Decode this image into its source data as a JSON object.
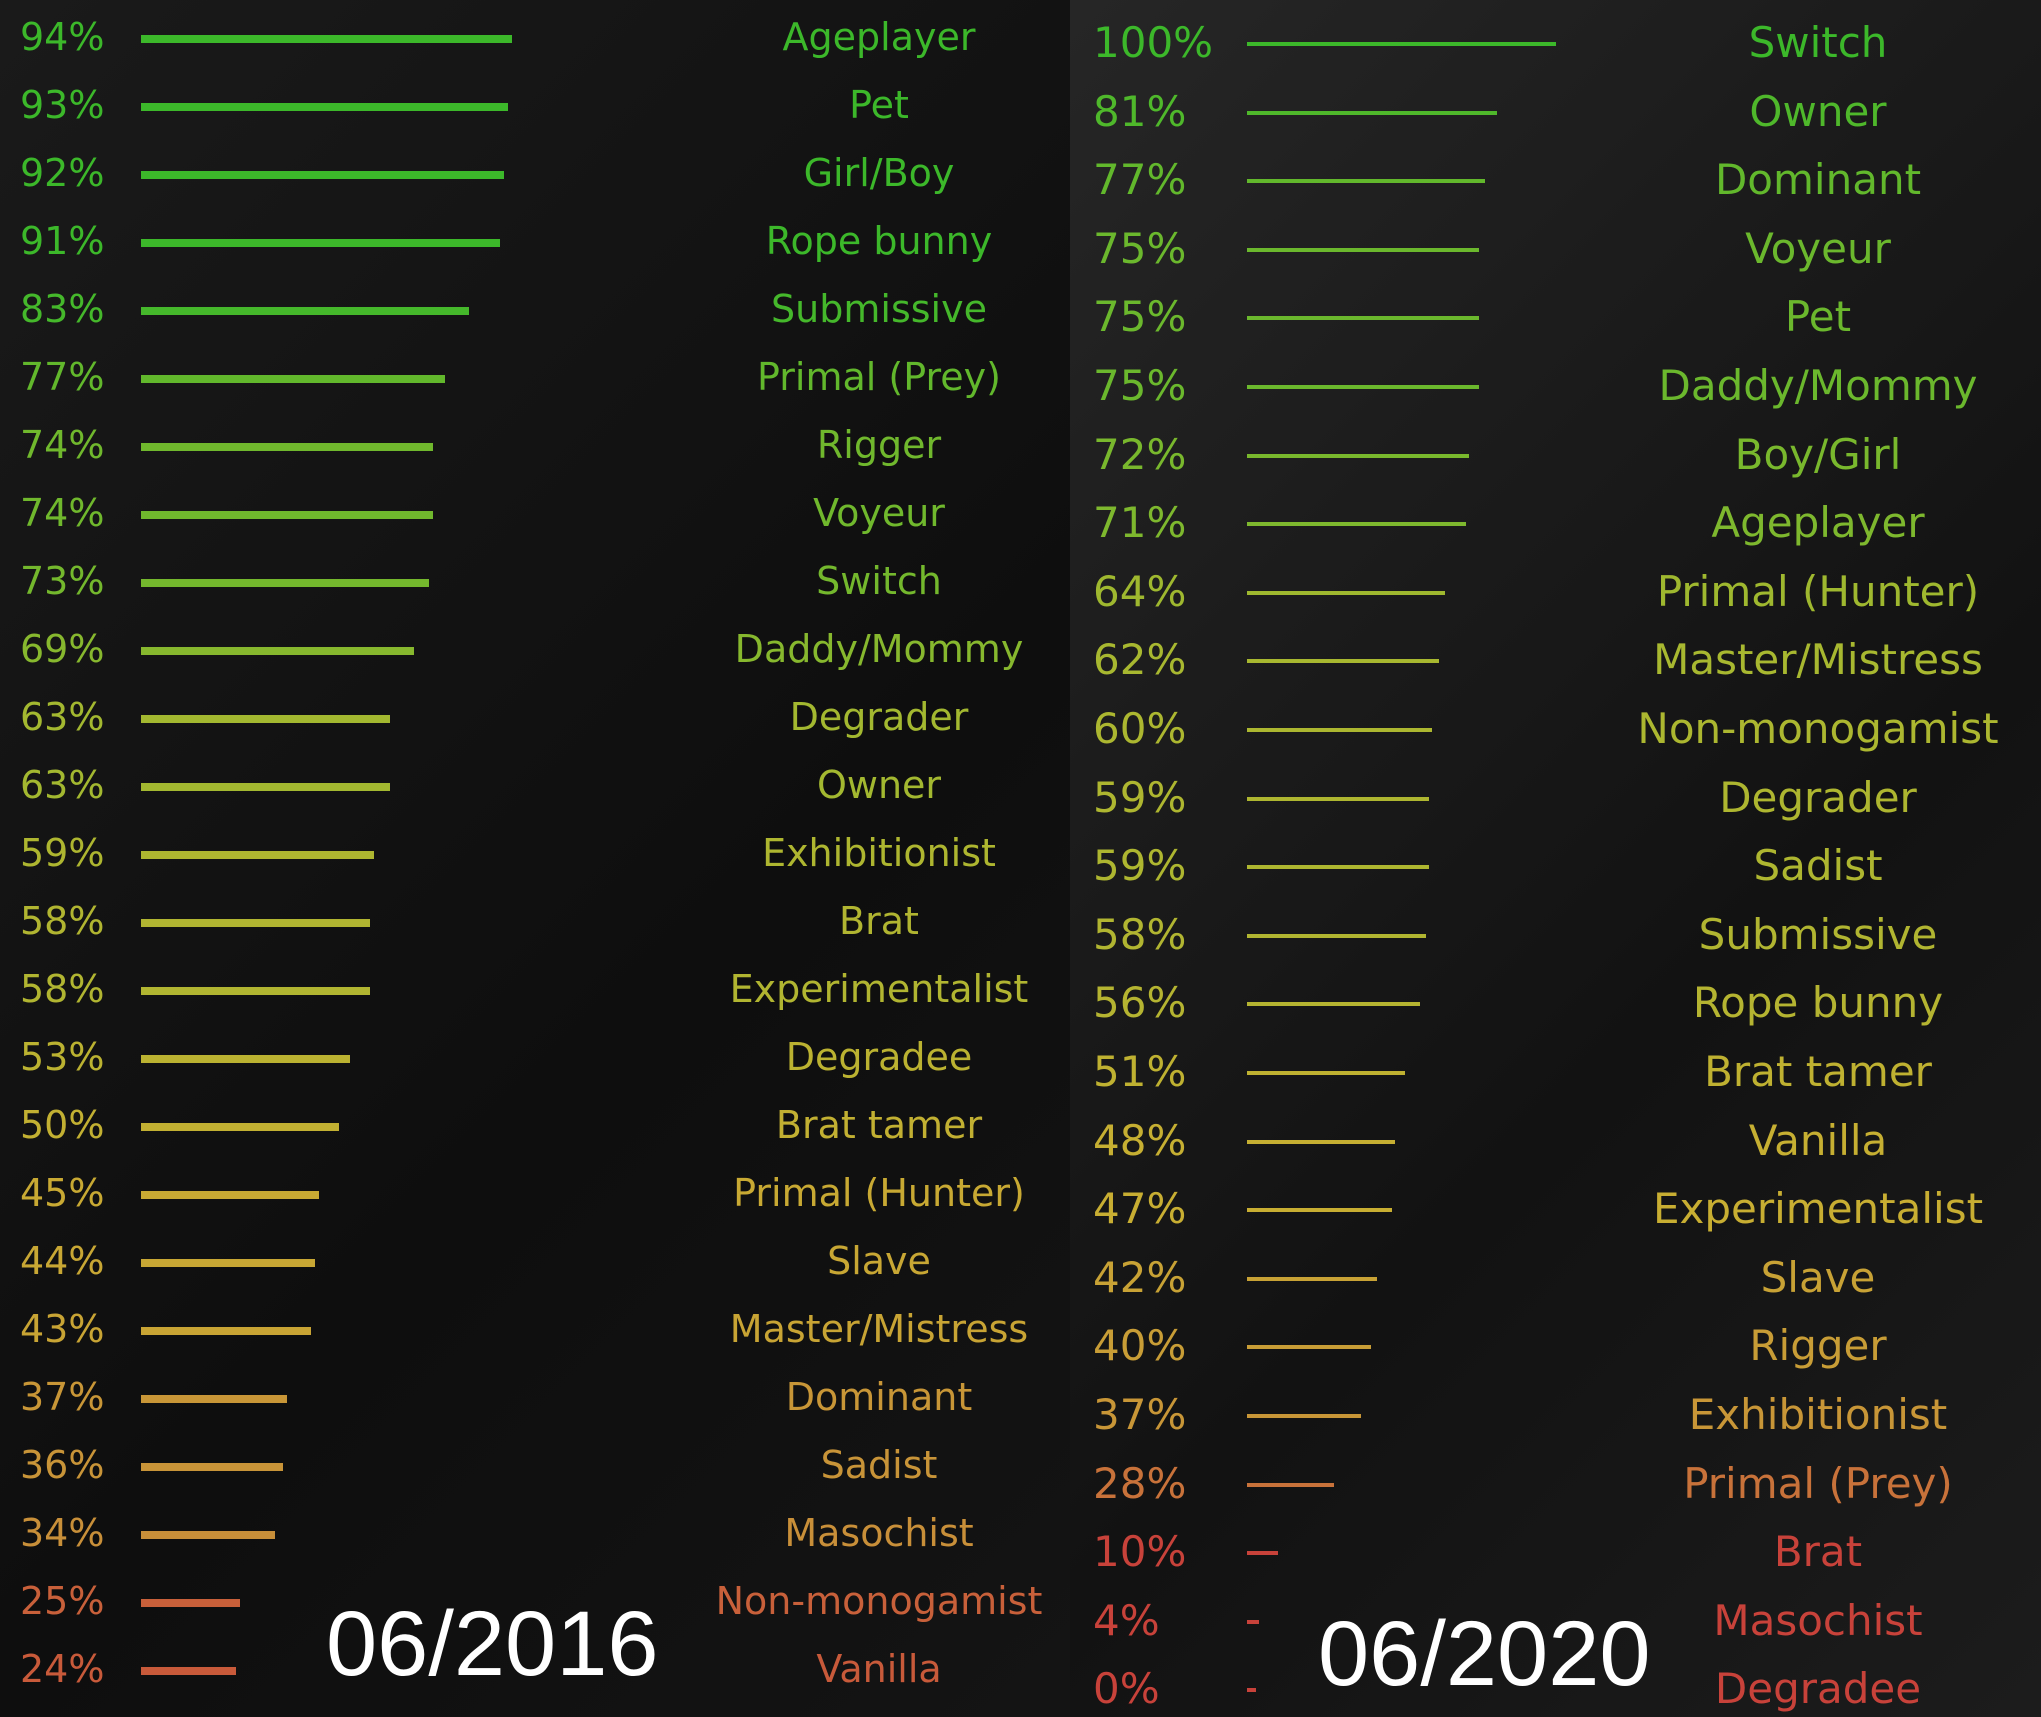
{
  "color_scale": {
    "high": "#3cb82a",
    "mid_high": "#a8b830",
    "mid": "#c8ae32",
    "low_mid": "#c88a3a",
    "low": "#c8423a"
  },
  "chart_data": [
    {
      "type": "bar",
      "orientation": "horizontal",
      "title": "06/2016",
      "xlim": [
        0,
        100
      ],
      "categories": [
        "Ageplayer",
        "Pet",
        "Girl/Boy",
        "Rope bunny",
        "Submissive",
        "Primal (Prey)",
        "Rigger",
        "Voyeur",
        "Switch",
        "Daddy/Mommy",
        "Degrader",
        "Owner",
        "Exhibitionist",
        "Brat",
        "Experimentalist",
        "Degradee",
        "Brat tamer",
        "Primal (Hunter)",
        "Slave",
        "Master/Mistress",
        "Dominant",
        "Sadist",
        "Masochist",
        "Non-monogamist",
        "Vanilla"
      ],
      "values": [
        94,
        93,
        92,
        91,
        83,
        77,
        74,
        74,
        73,
        69,
        63,
        63,
        59,
        58,
        58,
        53,
        50,
        45,
        44,
        43,
        37,
        36,
        34,
        25,
        24
      ],
      "labels": [
        "94%",
        "93%",
        "92%",
        "91%",
        "83%",
        "77%",
        "74%",
        "74%",
        "73%",
        "69%",
        "63%",
        "63%",
        "59%",
        "58%",
        "58%",
        "53%",
        "50%",
        "45%",
        "44%",
        "43%",
        "37%",
        "36%",
        "34%",
        "25%",
        "24%"
      ]
    },
    {
      "type": "bar",
      "orientation": "horizontal",
      "title": "06/2020",
      "xlim": [
        0,
        100
      ],
      "categories": [
        "Switch",
        "Owner",
        "Dominant",
        "Voyeur",
        "Pet",
        "Daddy/Mommy",
        "Boy/Girl",
        "Ageplayer",
        "Primal (Hunter)",
        "Master/Mistress",
        "Non-monogamist",
        "Degrader",
        "Sadist",
        "Submissive",
        "Rope bunny",
        "Brat tamer",
        "Vanilla",
        "Experimentalist",
        "Slave",
        "Rigger",
        "Exhibitionist",
        "Primal (Prey)",
        "Brat",
        "Masochist",
        "Degradee"
      ],
      "values": [
        100,
        81,
        77,
        75,
        75,
        75,
        72,
        71,
        64,
        62,
        60,
        59,
        59,
        58,
        56,
        51,
        48,
        47,
        42,
        40,
        37,
        28,
        10,
        4,
        0
      ],
      "labels": [
        "100%",
        "81%",
        "77%",
        "75%",
        "75%",
        "75%",
        "72%",
        "71%",
        "64%",
        "62%",
        "60%",
        "59%",
        "59%",
        "58%",
        "56%",
        "51%",
        "48%",
        "47%",
        "42%",
        "40%",
        "37%",
        "28%",
        "10%",
        "4%",
        "0%"
      ]
    }
  ]
}
